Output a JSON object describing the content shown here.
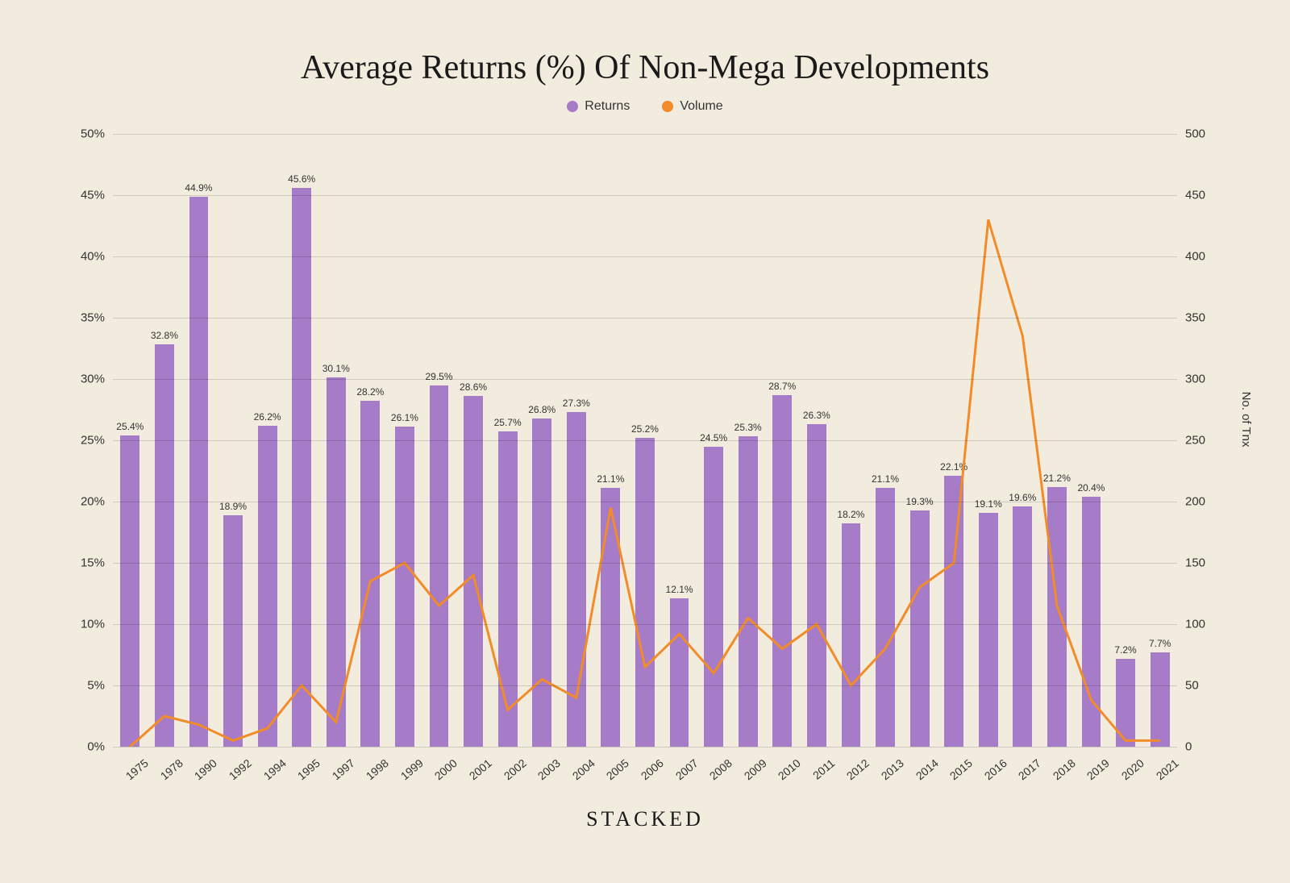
{
  "title": "Average Returns (%) Of Non-Mega Developments",
  "brand": "STACKED",
  "legend": {
    "returns_label": "Returns",
    "volume_label": "Volume"
  },
  "colors": {
    "background": "#f2ecde",
    "bar": "#a67bc7",
    "line": "#f28c28",
    "text": "#1a1a1a",
    "grid": "rgba(0,0,0,0.15)"
  },
  "y_left": {
    "min": 0,
    "max": 50,
    "step": 5,
    "format": "percent"
  },
  "y_right": {
    "min": 0,
    "max": 500,
    "step": 50,
    "title": "No. of Tnx"
  },
  "categories": [
    "1975",
    "1978",
    "1990",
    "1992",
    "1994",
    "1995",
    "1997",
    "1998",
    "1999",
    "2000",
    "2001",
    "2002",
    "2003",
    "2004",
    "2005",
    "2006",
    "2007",
    "2008",
    "2009",
    "2010",
    "2011",
    "2012",
    "2013",
    "2014",
    "2015",
    "2016",
    "2017",
    "2018",
    "2019",
    "2020",
    "2021"
  ],
  "returns": [
    25.4,
    32.8,
    44.9,
    18.9,
    26.2,
    45.6,
    30.1,
    28.2,
    26.1,
    29.5,
    28.6,
    25.7,
    26.8,
    27.3,
    21.1,
    25.2,
    12.1,
    24.5,
    25.3,
    28.7,
    26.3,
    18.2,
    21.1,
    19.3,
    22.1,
    19.1,
    19.6,
    21.2,
    20.4,
    7.2,
    7.7
  ],
  "volume": [
    0,
    25,
    18,
    5,
    15,
    50,
    20,
    135,
    150,
    115,
    140,
    30,
    55,
    40,
    195,
    65,
    92,
    60,
    105,
    80,
    100,
    50,
    80,
    130,
    150,
    430,
    335,
    115,
    38,
    5,
    5
  ],
  "typography": {
    "title_fontsize": 42,
    "label_fontsize": 15,
    "bar_label_fontsize": 12,
    "brand_fontsize": 26
  },
  "chart": {
    "type": "bar+line",
    "bar_width_ratio": 0.56,
    "line_width": 3
  }
}
